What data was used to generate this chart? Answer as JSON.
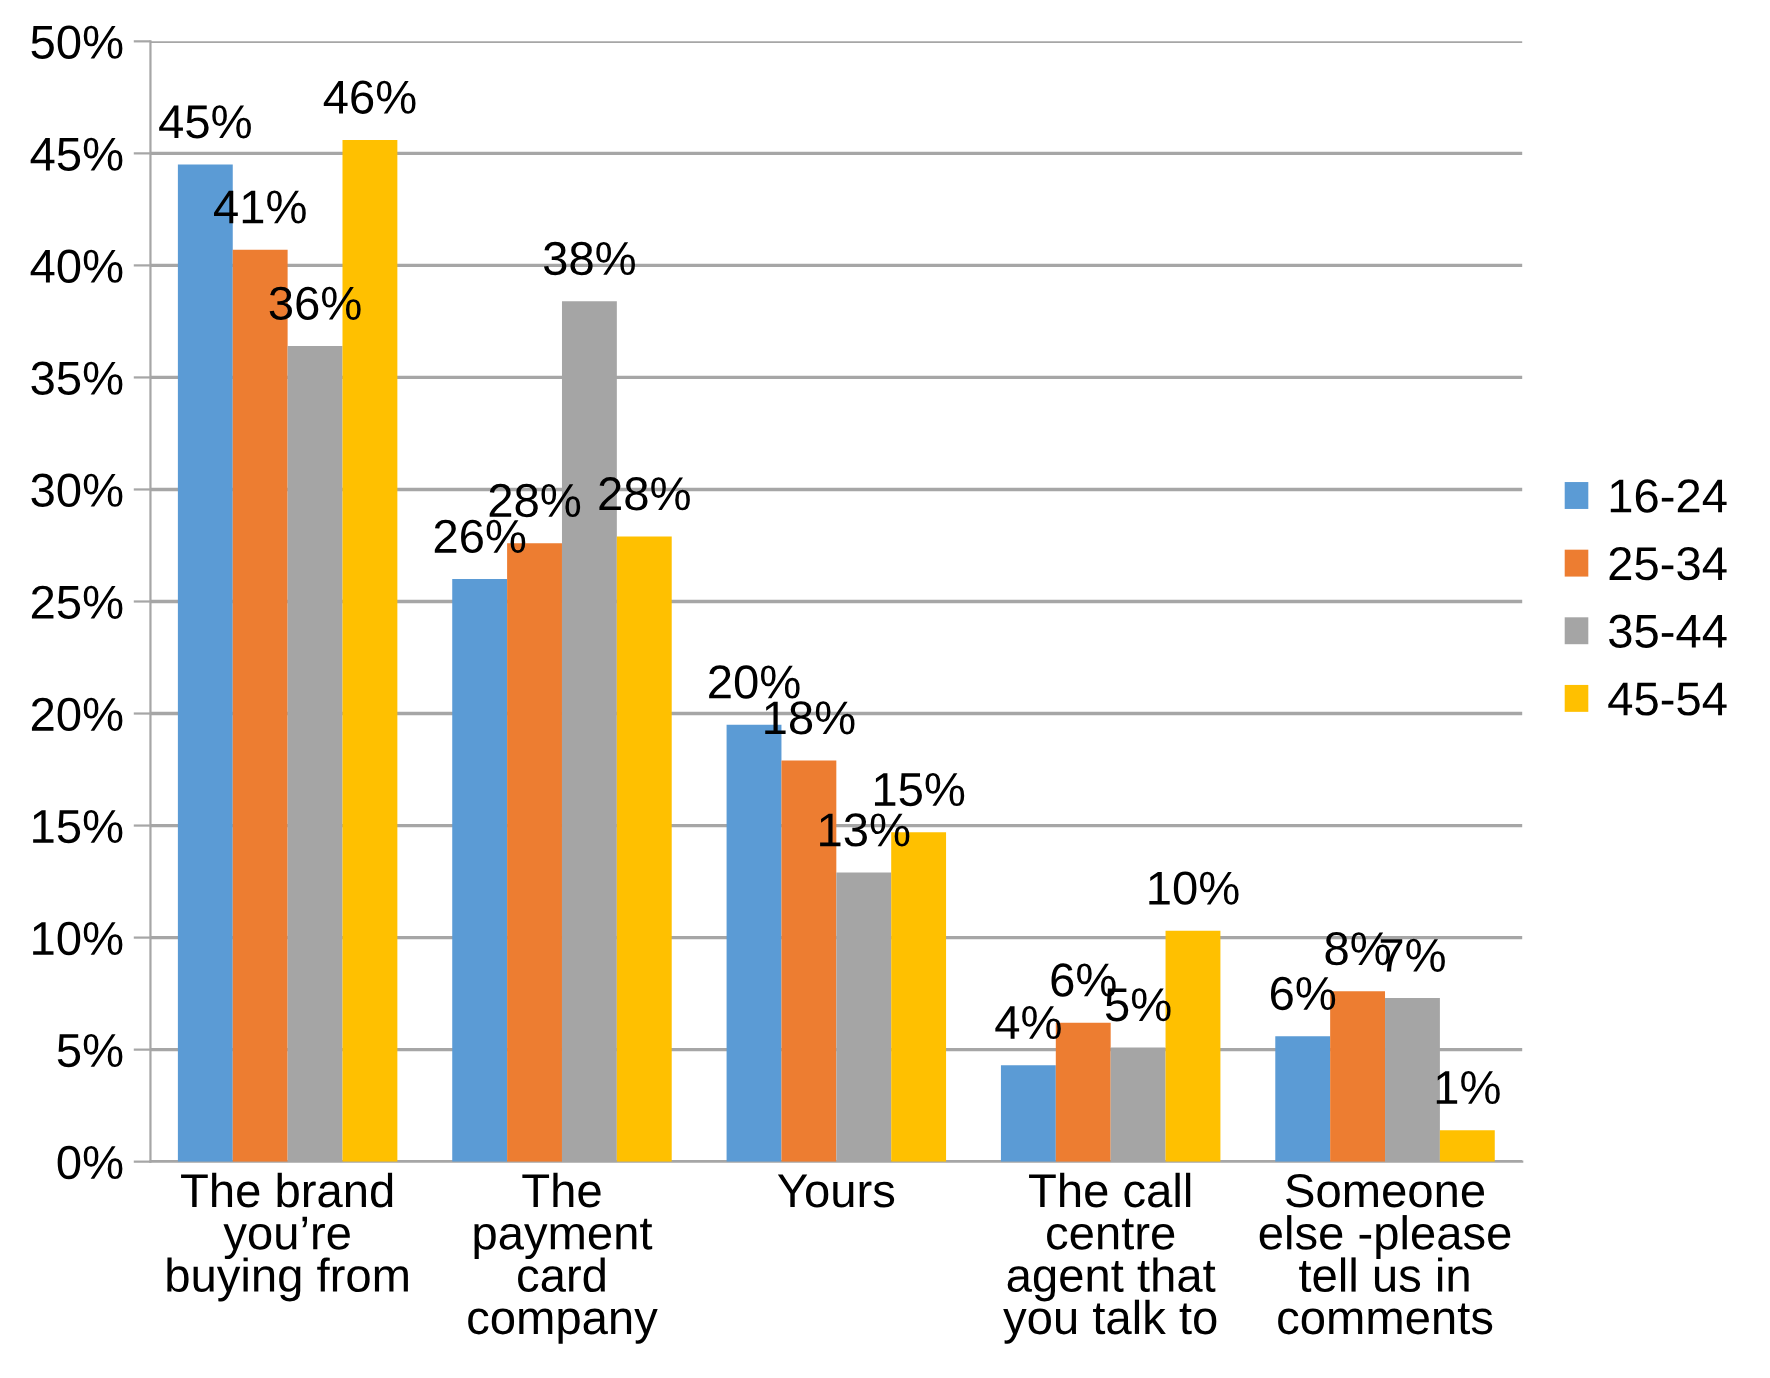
{
  "chart_data": {
    "type": "bar",
    "categories": [
      "The brand\nyou’re\nbuying from",
      "The\npayment\ncard\ncompany",
      "Yours",
      "The call\ncentre\nagent that\nyou talk to",
      "Someone\nelse -please\ntell us in\ncomments"
    ],
    "series": [
      {
        "name": "16-24",
        "color": "#5b9bd5",
        "values": [
          44.5,
          26.0,
          19.5,
          4.3,
          5.6
        ],
        "value_labels": [
          "45%",
          "26%",
          "20%",
          "4%",
          "6%"
        ]
      },
      {
        "name": "25-34",
        "color": "#ed7d31",
        "values": [
          40.7,
          27.6,
          17.9,
          6.2,
          7.6
        ],
        "value_labels": [
          "41%",
          "28%",
          "18%",
          "6%",
          "8%"
        ]
      },
      {
        "name": "35-44",
        "color": "#a5a5a5",
        "values": [
          36.4,
          38.4,
          12.9,
          5.1,
          7.3
        ],
        "value_labels": [
          "36%",
          "38%",
          "13%",
          "5%",
          "7%"
        ]
      },
      {
        "name": "45-54",
        "color": "#ffc000",
        "values": [
          45.6,
          27.9,
          14.7,
          10.3,
          1.4
        ],
        "value_labels": [
          "46%",
          "28%",
          "15%",
          "10%",
          "1%"
        ]
      }
    ],
    "ylim": [
      0,
      50
    ],
    "yticks": [
      {
        "value": 0,
        "label": "0%"
      },
      {
        "value": 5,
        "label": "5%"
      },
      {
        "value": 10,
        "label": "10%"
      },
      {
        "value": 15,
        "label": "15%"
      },
      {
        "value": 20,
        "label": "20%"
      },
      {
        "value": 25,
        "label": "25%"
      },
      {
        "value": 30,
        "label": "30%"
      },
      {
        "value": 35,
        "label": "35%"
      },
      {
        "value": 40,
        "label": "40%"
      },
      {
        "value": 45,
        "label": "45%"
      },
      {
        "value": 50,
        "label": "50%"
      }
    ],
    "grid": "y",
    "legend": "right"
  }
}
